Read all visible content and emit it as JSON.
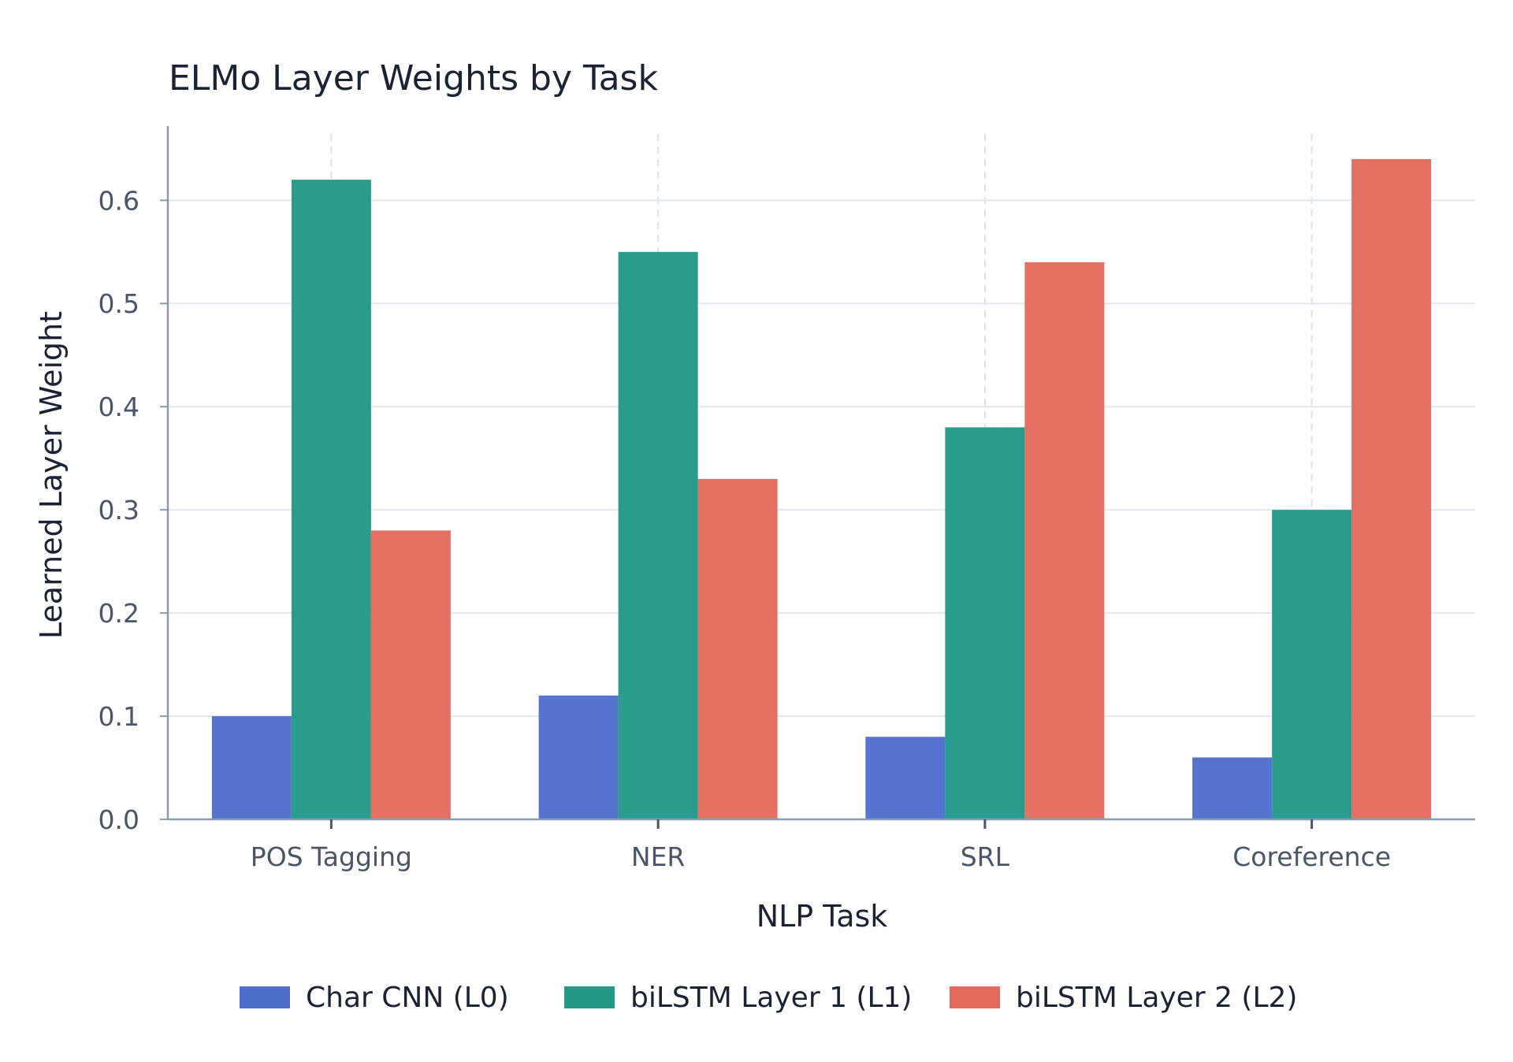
{
  "chart_data": {
    "type": "bar",
    "title": "ELMo Layer Weights by Task",
    "xlabel": "NLP Task",
    "ylabel": "Learned Layer Weight",
    "categories": [
      "POS Tagging",
      "NER",
      "SRL",
      "Coreference"
    ],
    "series": [
      {
        "name": "Char CNN (L0)",
        "color": "#4f6fcd",
        "values": [
          0.1,
          0.12,
          0.08,
          0.06
        ]
      },
      {
        "name": "biLSTM Layer 1 (L1)",
        "color": "#23998a",
        "values": [
          0.62,
          0.55,
          0.38,
          0.3
        ]
      },
      {
        "name": "biLSTM Layer 2 (L2)",
        "color": "#e26b5e",
        "values": [
          0.28,
          0.33,
          0.54,
          0.64
        ]
      }
    ],
    "yticks": [
      "0.0",
      "0.1",
      "0.2",
      "0.3",
      "0.4",
      "0.5",
      "0.6"
    ],
    "ylim": [
      0,
      0.672
    ],
    "grid": true,
    "legend_position": "bottom"
  }
}
